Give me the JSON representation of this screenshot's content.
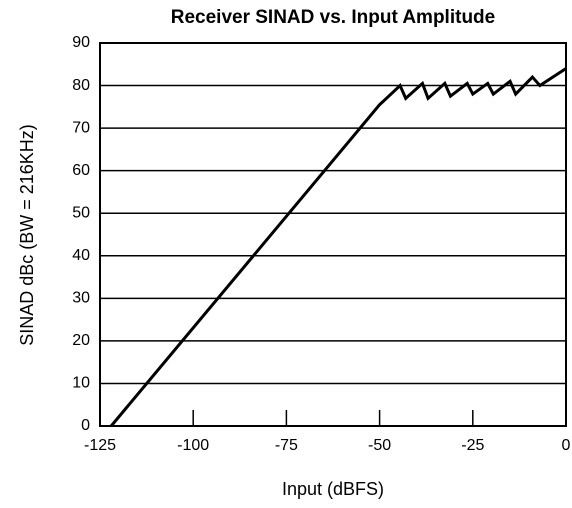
{
  "chart_data": {
    "type": "line",
    "title": "Receiver SINAD vs. Input Amplitude",
    "x_label": "Input (dBFS)",
    "y_label": "SINAD dBc (BW = 216KHz)",
    "series": [
      {
        "name": "SINAD",
        "color": "#000000",
        "x": [
          -122,
          -50,
          -44.5,
          -43,
          -38.5,
          -37,
          -32.5,
          -31,
          -26.5,
          -25,
          -21,
          -19.5,
          -15,
          -13.5,
          -9,
          -7,
          0
        ],
        "values": [
          0,
          75.5,
          80,
          77,
          80.5,
          77,
          80.5,
          77.5,
          80.5,
          78,
          80.5,
          78,
          81,
          78,
          82,
          80,
          84
        ]
      }
    ],
    "xlim": [
      -125,
      0
    ],
    "xticks": [
      -125,
      -100,
      -75,
      -50,
      -25,
      0
    ],
    "ylim": [
      0,
      90
    ],
    "yticks": [
      0,
      10,
      20,
      30,
      40,
      50,
      60,
      70,
      80,
      90
    ],
    "grid": true
  }
}
